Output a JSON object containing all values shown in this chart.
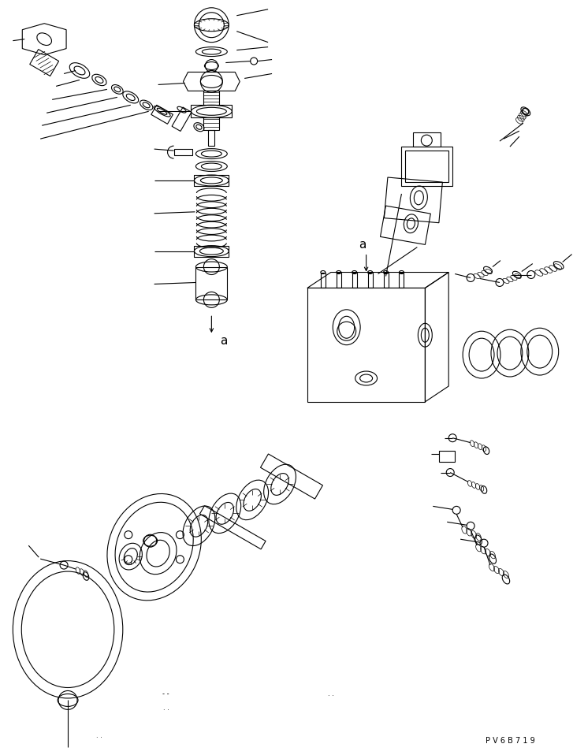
{
  "bg_color": "#ffffff",
  "line_color": "#000000",
  "fig_width": 7.27,
  "fig_height": 9.58,
  "dpi": 100,
  "watermark": "P V 6 B 7 1 9"
}
